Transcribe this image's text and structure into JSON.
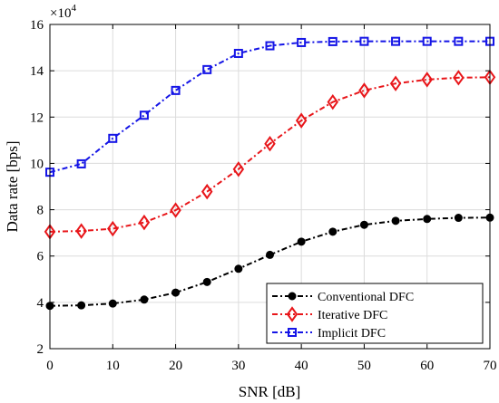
{
  "chart_data": {
    "type": "line",
    "xlabel": "SNR [dB]",
    "ylabel": "Data rate [bps]",
    "y_scale_label": "×10",
    "y_scale_exponent": "4",
    "xlim": [
      0,
      70
    ],
    "ylim": [
      2,
      16
    ],
    "x_ticks": [
      0,
      10,
      20,
      30,
      40,
      50,
      60,
      70
    ],
    "y_ticks": [
      2,
      4,
      6,
      8,
      10,
      12,
      14,
      16
    ],
    "x_tick_labels": [
      "0",
      "10",
      "20",
      "30",
      "40",
      "50",
      "60",
      "70"
    ],
    "y_tick_labels": [
      "2",
      "4",
      "6",
      "8",
      "10",
      "12",
      "14",
      "16"
    ],
    "grid": true,
    "legend_position": "bottom-right",
    "x": [
      0,
      5,
      10,
      15,
      20,
      25,
      30,
      35,
      40,
      45,
      50,
      55,
      60,
      65,
      70
    ],
    "series": [
      {
        "name": "Conventional DFC",
        "color": "#000000",
        "marker": "circle",
        "values": [
          3.85,
          3.87,
          3.95,
          4.12,
          4.42,
          4.88,
          5.45,
          6.05,
          6.62,
          7.05,
          7.35,
          7.52,
          7.6,
          7.65,
          7.66
        ]
      },
      {
        "name": "Iterative DFC",
        "color": "#e8161a",
        "marker": "diamond",
        "values": [
          7.05,
          7.08,
          7.18,
          7.45,
          7.98,
          8.78,
          9.75,
          10.85,
          11.85,
          12.65,
          13.15,
          13.45,
          13.62,
          13.7,
          13.72
        ]
      },
      {
        "name": "Implicit DFC",
        "color": "#1515e6",
        "marker": "square",
        "values": [
          9.62,
          9.98,
          11.08,
          12.08,
          13.15,
          14.05,
          14.75,
          15.08,
          15.22,
          15.26,
          15.27,
          15.27,
          15.27,
          15.27,
          15.27
        ]
      }
    ]
  }
}
